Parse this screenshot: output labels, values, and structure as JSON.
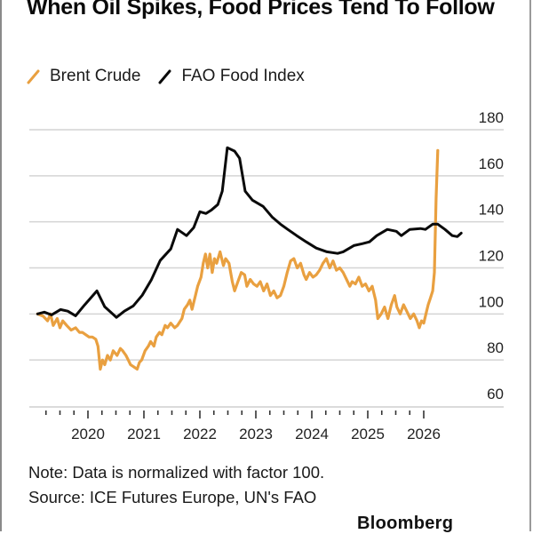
{
  "chart_data": {
    "type": "line",
    "title": "When Oil Spikes, Food Prices Tend To Follow",
    "xlabel": "",
    "ylabel": "",
    "xlim": [
      2019.1,
      2026.6
    ],
    "ylim": [
      60,
      180
    ],
    "y_ticks": [
      180,
      160,
      140,
      120,
      100,
      80,
      60
    ],
    "x_ticks": [
      "2020",
      "2021",
      "2022",
      "2023",
      "2024",
      "2025",
      "2026"
    ],
    "x_tick_values": [
      2020,
      2021,
      2022,
      2023,
      2024,
      2025,
      2026
    ],
    "grid": true,
    "legend_position": "top-left",
    "series": [
      {
        "name": "Brent Crude",
        "color": "#e9a040",
        "points": [
          [
            2019.1,
            100
          ],
          [
            2019.2,
            99
          ],
          [
            2019.28,
            97
          ],
          [
            2019.33,
            100
          ],
          [
            2019.38,
            95
          ],
          [
            2019.45,
            98
          ],
          [
            2019.5,
            94
          ],
          [
            2019.55,
            97
          ],
          [
            2019.62,
            95
          ],
          [
            2019.7,
            93
          ],
          [
            2019.78,
            94
          ],
          [
            2019.85,
            92
          ],
          [
            2019.9,
            92
          ],
          [
            2019.96,
            91
          ],
          [
            2020.02,
            90
          ],
          [
            2020.08,
            90
          ],
          [
            2020.14,
            89
          ],
          [
            2020.18,
            86
          ],
          [
            2020.22,
            76
          ],
          [
            2020.26,
            80
          ],
          [
            2020.3,
            78
          ],
          [
            2020.35,
            82
          ],
          [
            2020.4,
            80
          ],
          [
            2020.45,
            84
          ],
          [
            2020.52,
            82
          ],
          [
            2020.58,
            85
          ],
          [
            2020.62,
            84
          ],
          [
            2020.68,
            82
          ],
          [
            2020.72,
            80
          ],
          [
            2020.76,
            78
          ],
          [
            2020.82,
            77
          ],
          [
            2020.88,
            76
          ],
          [
            2020.92,
            79
          ],
          [
            2020.96,
            80
          ],
          [
            2021.02,
            84
          ],
          [
            2021.08,
            86
          ],
          [
            2021.12,
            88
          ],
          [
            2021.18,
            86
          ],
          [
            2021.22,
            90
          ],
          [
            2021.28,
            92
          ],
          [
            2021.32,
            91
          ],
          [
            2021.38,
            95
          ],
          [
            2021.42,
            94
          ],
          [
            2021.48,
            96
          ],
          [
            2021.55,
            94
          ],
          [
            2021.6,
            95
          ],
          [
            2021.68,
            98
          ],
          [
            2021.72,
            102
          ],
          [
            2021.78,
            104
          ],
          [
            2021.82,
            106
          ],
          [
            2021.86,
            102
          ],
          [
            2021.92,
            108
          ],
          [
            2021.96,
            112
          ],
          [
            2022.02,
            116
          ],
          [
            2022.06,
            122
          ],
          [
            2022.1,
            126
          ],
          [
            2022.14,
            120
          ],
          [
            2022.18,
            126
          ],
          [
            2022.22,
            118
          ],
          [
            2022.26,
            124
          ],
          [
            2022.3,
            122
          ],
          [
            2022.36,
            127
          ],
          [
            2022.42,
            121
          ],
          [
            2022.46,
            124
          ],
          [
            2022.52,
            122
          ],
          [
            2022.58,
            114
          ],
          [
            2022.62,
            110
          ],
          [
            2022.68,
            114
          ],
          [
            2022.74,
            118
          ],
          [
            2022.8,
            117
          ],
          [
            2022.84,
            112
          ],
          [
            2022.9,
            115
          ],
          [
            2022.96,
            113
          ],
          [
            2023.02,
            112
          ],
          [
            2023.08,
            114
          ],
          [
            2023.14,
            110
          ],
          [
            2023.2,
            113
          ],
          [
            2023.26,
            108
          ],
          [
            2023.32,
            110
          ],
          [
            2023.38,
            107
          ],
          [
            2023.44,
            108
          ],
          [
            2023.5,
            112
          ],
          [
            2023.56,
            118
          ],
          [
            2023.62,
            123
          ],
          [
            2023.68,
            124
          ],
          [
            2023.74,
            120
          ],
          [
            2023.8,
            122
          ],
          [
            2023.86,
            117
          ],
          [
            2023.9,
            115
          ],
          [
            2023.96,
            118
          ],
          [
            2024.02,
            116
          ],
          [
            2024.08,
            117
          ],
          [
            2024.14,
            119
          ],
          [
            2024.2,
            122
          ],
          [
            2024.26,
            124
          ],
          [
            2024.32,
            120
          ],
          [
            2024.38,
            123
          ],
          [
            2024.44,
            119
          ],
          [
            2024.5,
            120
          ],
          [
            2024.56,
            118
          ],
          [
            2024.62,
            115
          ],
          [
            2024.68,
            112
          ],
          [
            2024.72,
            114
          ],
          [
            2024.78,
            113
          ],
          [
            2024.84,
            116
          ],
          [
            2024.9,
            112
          ],
          [
            2024.96,
            113
          ],
          [
            2025.02,
            110
          ],
          [
            2025.08,
            112
          ],
          [
            2025.14,
            106
          ],
          [
            2025.18,
            98
          ],
          [
            2025.24,
            100
          ],
          [
            2025.3,
            103
          ],
          [
            2025.36,
            98
          ],
          [
            2025.42,
            104
          ],
          [
            2025.48,
            108
          ],
          [
            2025.52,
            103
          ],
          [
            2025.58,
            100
          ],
          [
            2025.64,
            104
          ],
          [
            2025.7,
            101
          ],
          [
            2025.76,
            98
          ],
          [
            2025.82,
            100
          ],
          [
            2025.88,
            97
          ],
          [
            2025.92,
            94
          ],
          [
            2025.96,
            97
          ],
          [
            2026.0,
            96
          ],
          [
            2026.04,
            100
          ],
          [
            2026.08,
            104
          ],
          [
            2026.12,
            107
          ],
          [
            2026.16,
            110
          ],
          [
            2026.19,
            118
          ],
          [
            2026.22,
            150
          ],
          [
            2026.25,
            171
          ]
        ]
      },
      {
        "name": "FAO Food Index",
        "color": "#0a0a0a",
        "points": [
          [
            2019.1,
            100
          ],
          [
            2019.22,
            100.8
          ],
          [
            2019.35,
            99.6
          ],
          [
            2019.51,
            101.9
          ],
          [
            2019.64,
            101.2
          ],
          [
            2019.78,
            99.2
          ],
          [
            2019.94,
            103.9
          ],
          [
            2020.16,
            110.0
          ],
          [
            2020.3,
            103.1
          ],
          [
            2020.51,
            98.5
          ],
          [
            2020.65,
            101.2
          ],
          [
            2020.81,
            103.5
          ],
          [
            2020.97,
            108.1
          ],
          [
            2021.13,
            114.7
          ],
          [
            2021.29,
            123.2
          ],
          [
            2021.48,
            128.2
          ],
          [
            2021.6,
            136.7
          ],
          [
            2021.76,
            134.0
          ],
          [
            2021.89,
            137.5
          ],
          [
            2022.0,
            144.4
          ],
          [
            2022.11,
            143.6
          ],
          [
            2022.21,
            145.2
          ],
          [
            2022.32,
            147.5
          ],
          [
            2022.4,
            153.3
          ],
          [
            2022.49,
            172.2
          ],
          [
            2022.62,
            170.7
          ],
          [
            2022.71,
            167.6
          ],
          [
            2022.81,
            153.3
          ],
          [
            2022.94,
            149.4
          ],
          [
            2023.13,
            146.7
          ],
          [
            2023.29,
            142.1
          ],
          [
            2023.44,
            139.0
          ],
          [
            2023.57,
            136.7
          ],
          [
            2023.73,
            134.0
          ],
          [
            2023.9,
            131.3
          ],
          [
            2024.08,
            128.6
          ],
          [
            2024.27,
            127.0
          ],
          [
            2024.46,
            126.3
          ],
          [
            2024.56,
            127.0
          ],
          [
            2024.75,
            129.7
          ],
          [
            2024.9,
            130.5
          ],
          [
            2025.03,
            131.3
          ],
          [
            2025.16,
            134.0
          ],
          [
            2025.35,
            136.7
          ],
          [
            2025.51,
            135.9
          ],
          [
            2025.6,
            134.0
          ],
          [
            2025.75,
            136.7
          ],
          [
            2025.94,
            137.1
          ],
          [
            2026.03,
            136.7
          ],
          [
            2026.16,
            139.0
          ],
          [
            2026.25,
            139.0
          ],
          [
            2026.38,
            136.7
          ],
          [
            2026.51,
            134.0
          ],
          [
            2026.6,
            133.6
          ],
          [
            2026.67,
            135.1
          ]
        ]
      }
    ]
  },
  "header": {
    "title": "When Oil Spikes, Food Prices Tend To Follow"
  },
  "legend": {
    "items": [
      {
        "label": "Brent Crude",
        "color": "#e9a040"
      },
      {
        "label": "FAO Food Index",
        "color": "#0a0a0a"
      }
    ]
  },
  "footer": {
    "note": "Note: Data is normalized with factor 100.",
    "source": "Source: ICE Futures Europe, UN's FAO",
    "brand": "Bloomberg"
  }
}
